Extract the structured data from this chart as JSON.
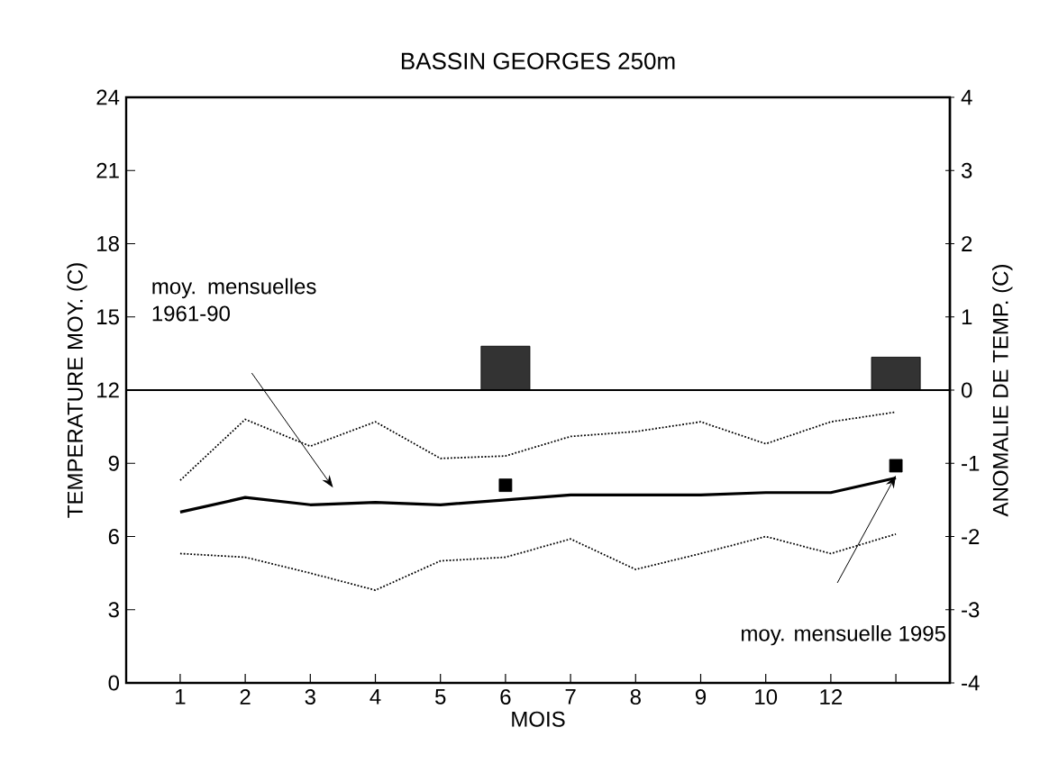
{
  "chart_data": {
    "type": "line",
    "title": "BASSIN GEORGES 250m",
    "xlabel": "MOIS",
    "ylabel": "TEMPERATURE MOY. (C)",
    "y2label": "ANOMALIE DE TEMP. (C)",
    "categories": [
      "1",
      "2",
      "3",
      "4",
      "5",
      "6",
      "7",
      "8",
      "9",
      "10",
      "12",
      null
    ],
    "ylim": [
      0,
      24
    ],
    "yticks": [
      0,
      3,
      6,
      9,
      12,
      15,
      18,
      21,
      24
    ],
    "y2lim": [
      -4,
      4
    ],
    "y2ticks": [
      -4,
      -3,
      -2,
      -1,
      0,
      1,
      2,
      3,
      4
    ],
    "series": [
      {
        "color": "#000000",
        "line_style": "solid",
        "values": [
          7.0,
          7.6,
          7.3,
          7.4,
          7.3,
          7.5,
          7.7,
          7.7,
          7.7,
          7.8,
          7.8,
          8.4
        ]
      },
      {
        "color": "#000000",
        "line_style": "dotted",
        "values": [
          8.3,
          10.8,
          9.7,
          10.7,
          9.2,
          9.3,
          10.1,
          10.3,
          10.7,
          9.8,
          10.7,
          11.1
        ]
      },
      {
        "color": "#000000",
        "line_style": "dotted",
        "values": [
          5.3,
          5.15,
          4.5,
          3.8,
          5.0,
          5.15,
          5.9,
          4.65,
          5.3,
          6.0,
          5.3,
          6.1
        ]
      },
      {
        "type": "scatter",
        "color": "#000000",
        "marker": "square",
        "values": [
          null,
          null,
          null,
          null,
          null,
          8.1,
          null,
          null,
          null,
          null,
          null,
          8.9
        ]
      },
      {
        "type": "bar",
        "axis": "y2",
        "color": "#333333",
        "values": [
          null,
          null,
          null,
          null,
          null,
          0.6,
          null,
          null,
          null,
          null,
          null,
          0.45
        ]
      }
    ],
    "ref_lines": [
      {
        "axis": "y2",
        "value": 0,
        "color": "#000000",
        "line_style": "solid"
      }
    ],
    "annotations": [
      "moy. mensuelles 1961-90",
      "moy. mensuelle 1995"
    ]
  }
}
